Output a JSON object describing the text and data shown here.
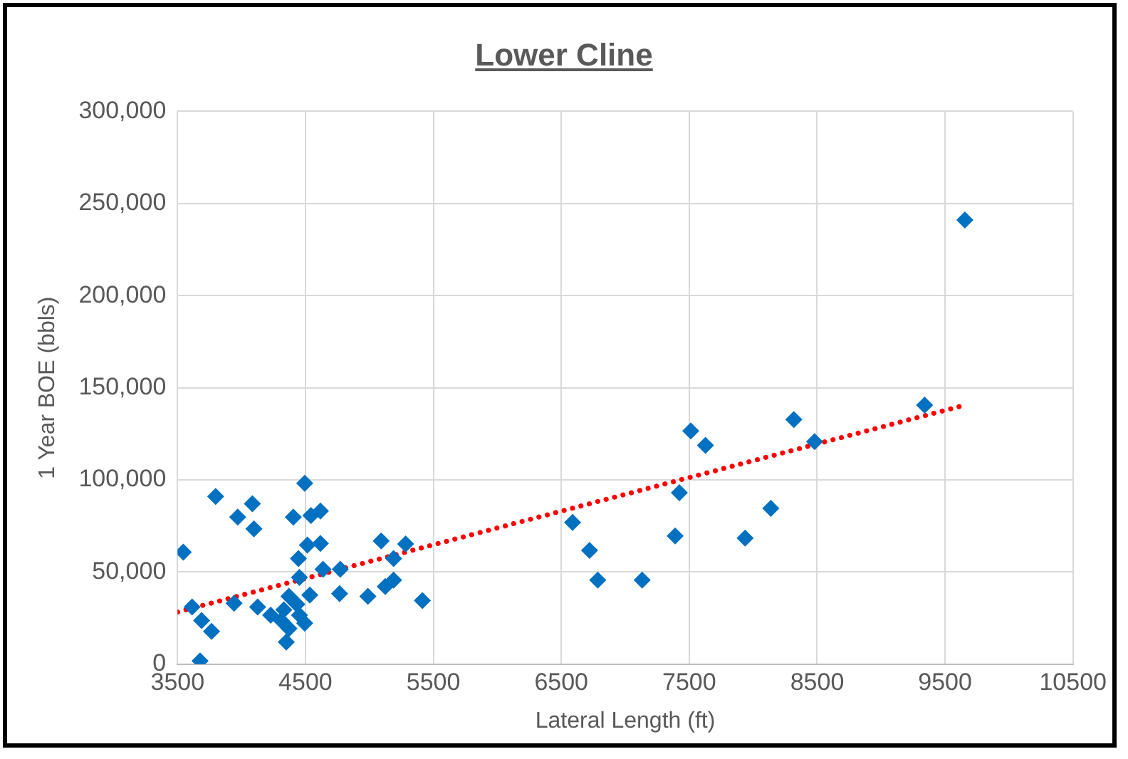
{
  "chart_data": {
    "type": "scatter",
    "title": "Lower Cline",
    "xlabel": "Lateral Length (ft)",
    "ylabel": "1 Year BOE (bbls)",
    "xlim": [
      3500,
      10500
    ],
    "xticks": [
      3500,
      4500,
      5500,
      6500,
      7500,
      8500,
      9500,
      10500
    ],
    "ylim": [
      0,
      300000
    ],
    "yticks": [
      {
        "value": 0,
        "label": "0"
      },
      {
        "value": 50000,
        "label": "50,000"
      },
      {
        "value": 100000,
        "label": "100,000"
      },
      {
        "value": 150000,
        "label": "150,000"
      },
      {
        "value": 200000,
        "label": "200,000"
      },
      {
        "value": 250000,
        "label": "250,000"
      },
      {
        "value": 300000,
        "label": "300,000"
      }
    ],
    "grid": true,
    "legend": false,
    "marker": "diamond",
    "series": [
      {
        "color": "#0070c0",
        "x": [
          9655,
          9340,
          8318,
          8480,
          7512,
          7627,
          7423,
          6588,
          6721,
          6785,
          7132,
          7390,
          7937,
          8138,
          3545,
          3798,
          3970,
          4085,
          4097,
          4494,
          4405,
          4543,
          4617,
          4515,
          4617,
          4445,
          5092,
          5283,
          5189,
          5189,
          5414,
          5124,
          4988,
          4767,
          4534,
          4637,
          4772,
          4453,
          3614,
          3688,
          3766,
          3676,
          3942,
          4126,
          4228,
          4310,
          4412,
          4494,
          4350,
          4371,
          4331,
          4433,
          4371,
          4453
        ],
        "values": [
          241000,
          140600,
          132700,
          120800,
          126600,
          118700,
          93000,
          76900,
          61700,
          45600,
          45600,
          69600,
          68400,
          84500,
          60800,
          91000,
          79800,
          87100,
          73400,
          98200,
          79800,
          80700,
          83100,
          64600,
          65500,
          57300,
          66900,
          65200,
          57300,
          45600,
          34500,
          42100,
          36800,
          38300,
          37500,
          51500,
          51500,
          47100,
          31000,
          23700,
          17800,
          1800,
          33100,
          31000,
          26600,
          23700,
          null,
          22200,
          12000,
          19300,
          29500,
          32500,
          36800,
          26600
        ]
      },
      {
        "type": "line",
        "color": "#ff0000",
        "line_style": "dotted",
        "marker": "none",
        "x": [
          3500,
          9655
        ],
        "values": [
          28300,
          140600
        ]
      }
    ]
  }
}
